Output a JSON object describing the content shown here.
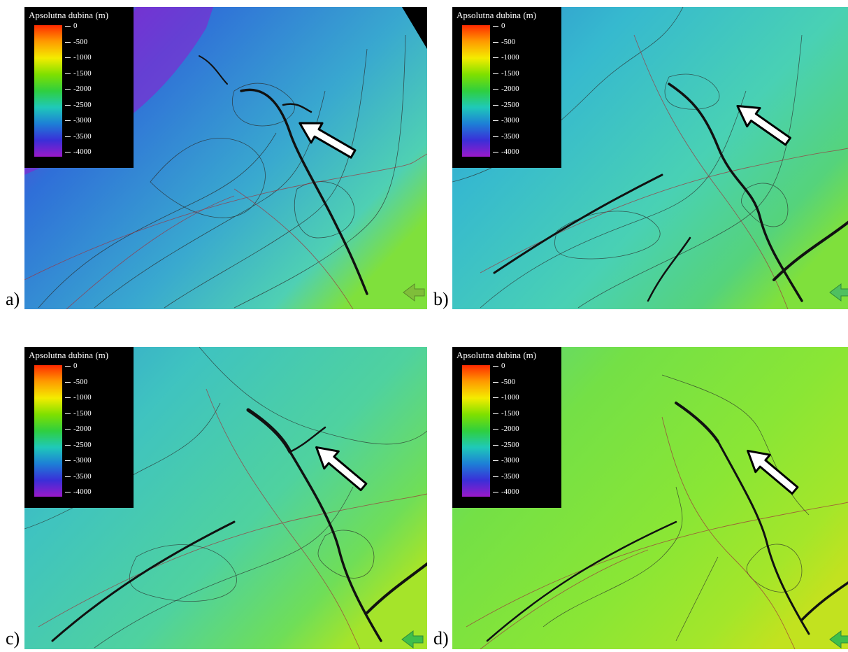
{
  "legend": {
    "title": "Apsolutna dubina (m)",
    "ticks": [
      "0",
      "-500",
      "-1000",
      "-1500",
      "-2000",
      "-2500",
      "-3000",
      "-3500",
      "-4000"
    ],
    "color_stops": [
      "#ff2a00",
      "#ff9b00",
      "#f4ec00",
      "#7fe000",
      "#2fcf3f",
      "#1fc9b9",
      "#1d7fd6",
      "#3a2fd8",
      "#9a19c9"
    ]
  },
  "panels": [
    {
      "label": "a)",
      "palette": {
        "deep": "#8a1fd0",
        "mid": "#2f6fd8",
        "main": "#39a9cf",
        "light": "#4fd0b3",
        "accent": "#7fe03c"
      }
    },
    {
      "label": "b)",
      "palette": {
        "deep": "#2f8fd0",
        "mid": "#36b9cf",
        "main": "#49d1b4",
        "light": "#55d37b",
        "accent": "#7fe03c"
      }
    },
    {
      "label": "c)",
      "palette": {
        "deep": "#33a0d0",
        "mid": "#3fc3c0",
        "main": "#4fd29f",
        "light": "#6fde58",
        "accent": "#a5e42a"
      }
    },
    {
      "label": "d)",
      "palette": {
        "deep": "#57d488",
        "mid": "#74e046",
        "main": "#8ae635",
        "light": "#a4e62a",
        "accent": "#c2e21f"
      }
    }
  ]
}
